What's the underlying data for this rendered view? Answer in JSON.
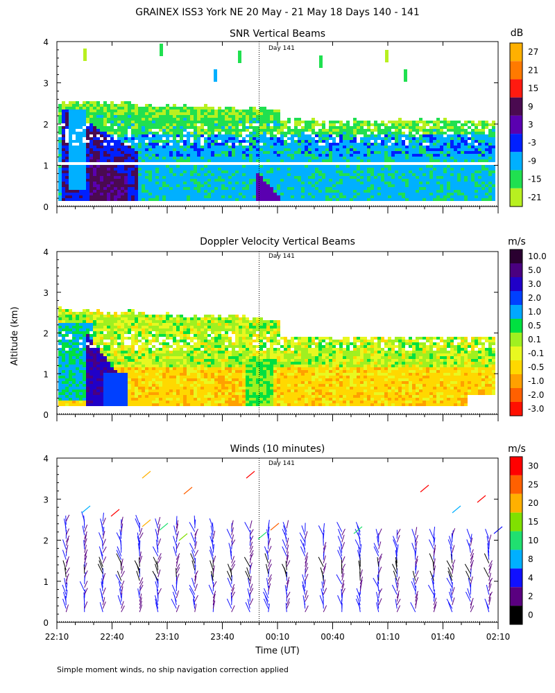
{
  "title": "GRAINEX ISS3 York NE  20 May - 21 May 18 Days 140 - 141",
  "ylabel": "Altitude (km)",
  "xlabel": "Time (UT)",
  "footnote": "Simple moment winds, no ship navigation correction applied",
  "day_marker": {
    "label": "Day 141",
    "time": "00:00"
  },
  "chart_data": [
    {
      "type": "heatmap",
      "title": "SNR Vertical Beams",
      "unit": "dB",
      "x_tick_labels": [
        "22:10",
        "22:40",
        "23:10",
        "23:40",
        "00:10",
        "00:40",
        "01:10",
        "01:40",
        "02:10"
      ],
      "y_tick_labels": [
        "0",
        "1",
        "2",
        "3",
        "4"
      ],
      "ylim": [
        0,
        4
      ],
      "xlim": [
        "22:10",
        "02:10"
      ],
      "colorbar": {
        "labels": [
          "27",
          "21",
          "15",
          "9",
          "3",
          "-3",
          "-9",
          "-15",
          "-21"
        ],
        "colors": [
          "#ffb000",
          "#ff7a00",
          "#ff1a10",
          "#4a0a50",
          "#5a00b0",
          "#0020ff",
          "#00b0ff",
          "#20e050",
          "#b8f020"
        ]
      },
      "layers": {
        "weak_echo_top_km": 2.5,
        "strong_echo_top_km": 1.7,
        "peak_echo_top_km": 1.0
      }
    },
    {
      "type": "heatmap",
      "title": "Doppler Velocity Vertical Beams",
      "unit": "m/s",
      "x_tick_labels": [
        "22:10",
        "22:40",
        "23:10",
        "23:40",
        "00:10",
        "00:40",
        "01:10",
        "01:40",
        "02:10"
      ],
      "y_tick_labels": [
        "0",
        "1",
        "2",
        "3",
        "4"
      ],
      "ylim": [
        0,
        4
      ],
      "xlim": [
        "22:10",
        "02:10"
      ],
      "colorbar": {
        "labels": [
          "10.0",
          "5.0",
          "3.0",
          "2.0",
          "1.0",
          "0.5",
          "0.1",
          "-0.1",
          "-0.5",
          "-1.0",
          "-2.0",
          "-3.0"
        ],
        "colors": [
          "#2a0030",
          "#4a0080",
          "#2000c8",
          "#0040ff",
          "#00a8ff",
          "#00e040",
          "#a0f020",
          "#e8f820",
          "#ffd800",
          "#ffa000",
          "#ff6000",
          "#ff1000"
        ]
      }
    },
    {
      "type": "scatter",
      "title": "Winds (10 minutes)",
      "unit": "m/s",
      "x_tick_labels": [
        "22:10",
        "22:40",
        "23:10",
        "23:40",
        "00:10",
        "00:40",
        "01:10",
        "01:40",
        "02:10"
      ],
      "y_tick_labels": [
        "0",
        "1",
        "2",
        "3",
        "4"
      ],
      "ylim": [
        0,
        4
      ],
      "xlim": [
        "22:10",
        "02:10"
      ],
      "colorbar": {
        "labels": [
          "30",
          "25",
          "20",
          "15",
          "10",
          "8",
          "4",
          "2",
          "0"
        ],
        "colors": [
          "#ff0000",
          "#ff6000",
          "#ffb000",
          "#80e000",
          "#20e070",
          "#00b0ff",
          "#1010ff",
          "#5a0080",
          "#000000"
        ]
      },
      "profile_times": [
        "22:15",
        "22:25",
        "22:35",
        "22:45",
        "22:55",
        "23:05",
        "23:15",
        "23:25",
        "23:35",
        "23:45",
        "23:55",
        "00:05",
        "00:15",
        "00:25",
        "00:35",
        "00:45",
        "00:55",
        "01:05",
        "01:15",
        "01:25",
        "01:35",
        "01:45",
        "01:55",
        "02:05"
      ]
    }
  ]
}
